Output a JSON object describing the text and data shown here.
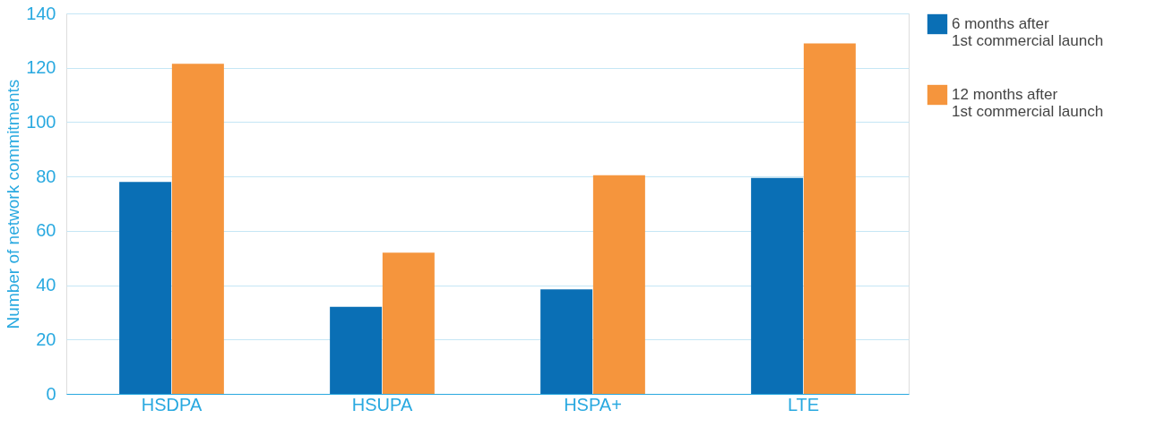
{
  "chart_data": {
    "type": "bar",
    "ylabel": "Number of network commitments",
    "categories": [
      "HSDPA",
      "HSUPA",
      "HSPA+",
      "LTE"
    ],
    "series": [
      {
        "name": "6 months after\n1st commercial launch",
        "color": "#0a6fb5",
        "values": [
          78,
          32,
          38.5,
          79.5
        ]
      },
      {
        "name": "12 months after\n1st commercial launch",
        "color": "#f5953d",
        "values": [
          121.5,
          52,
          80.5,
          129
        ]
      }
    ],
    "ylim": [
      0,
      140
    ],
    "yticks": [
      0,
      20,
      40,
      60,
      80,
      100,
      120,
      140
    ],
    "grid": "y",
    "legend": "right"
  }
}
